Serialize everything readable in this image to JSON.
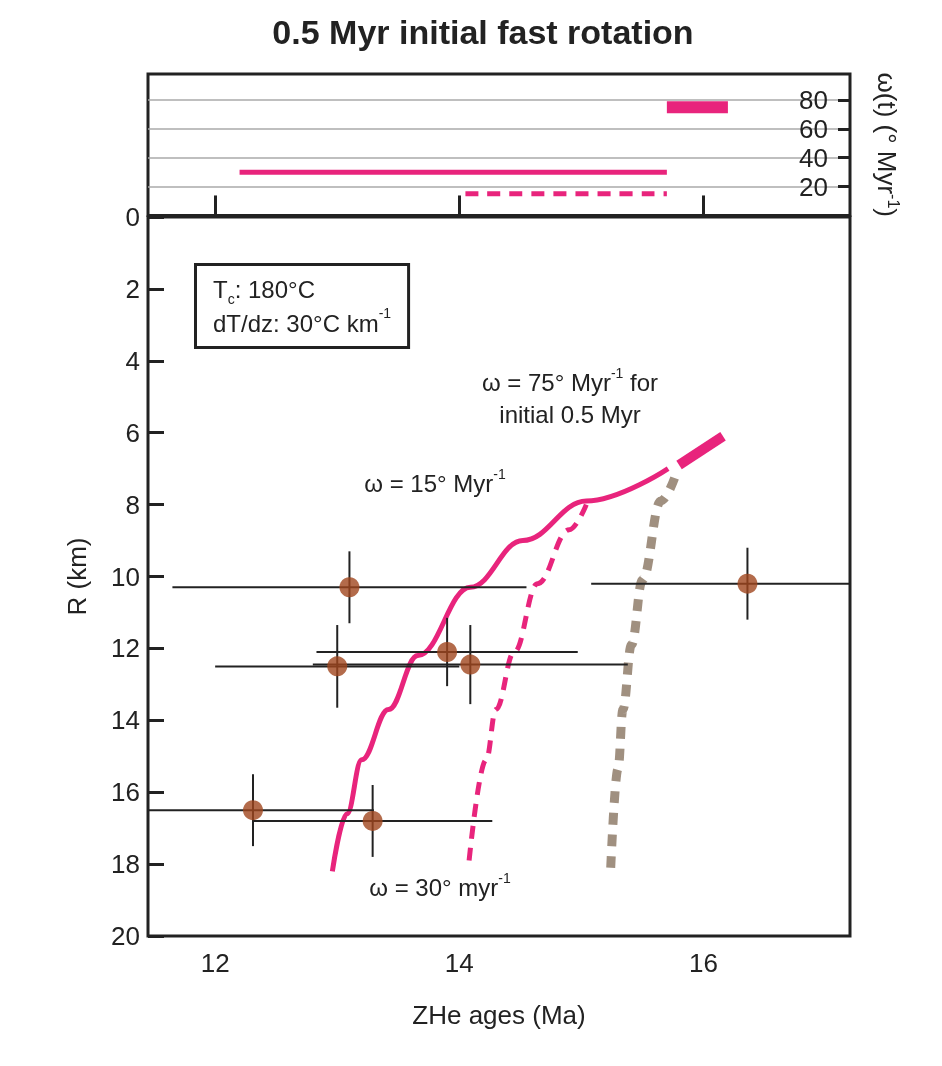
{
  "chart_data": [
    {
      "type": "line",
      "title": "0.5 Myr initial fast rotation",
      "ylabel": "ω(t) (° Myr$^{-1}$)",
      "xlim": [
        11.45,
        17.2
      ],
      "xticks": [
        {
          "value": 12,
          "label": null
        },
        {
          "value": 14,
          "label": null
        },
        {
          "value": 16,
          "label": null
        }
      ],
      "ylim": [
        0,
        98
      ],
      "yticks": [
        20,
        40,
        60,
        80
      ],
      "grid": "y",
      "tick_labels": "y",
      "marker": "none",
      "series": [
        {
          "color": "#e8247c",
          "line_style": "solid",
          "x": [
            12.2,
            15.7
          ],
          "values": [
            30,
            30
          ]
        },
        {
          "color": "#e8247c",
          "line_style": "dashed",
          "x": [
            14.05,
            15.7
          ],
          "values": [
            15,
            15
          ]
        },
        {
          "color": "#e8247c",
          "line_style": "solid",
          "x": [
            15.7,
            16.2
          ],
          "values": [
            75,
            75
          ]
        }
      ]
    },
    {
      "type": "line",
      "xlabel": "ZHe ages (Ma)",
      "ylabel": "R (km)",
      "xlim": [
        11.45,
        17.2
      ],
      "xticks": [
        12,
        14,
        16
      ],
      "ylim": [
        20,
        0
      ],
      "yticks": [
        0,
        2,
        4,
        6,
        8,
        10,
        12,
        14,
        16,
        18,
        20
      ],
      "grid": false,
      "annotations": [
        "T$_{c}$: 180°C\ndT/dz: 30°C km$^{-1}$",
        "ω = 15° Myr$^{-1}$",
        "ω = 30° myr$^{-1}$",
        "ω = 75° Myr$^{-1}$ for\ninitial 0.5 Myr"
      ],
      "series": [
        {
          "color": "#e8247c",
          "line_style": "solid",
          "marker": "none",
          "x": [
            12.96,
            13.08,
            13.2,
            13.42,
            13.66,
            14.09,
            14.52,
            15.04,
            15.71
          ],
          "values": [
            18.2,
            16.6,
            15.1,
            13.7,
            12.2,
            10.3,
            9.0,
            7.9,
            7.0
          ]
        },
        {
          "color": "#e8247c",
          "line_style": "dashed",
          "marker": "none",
          "x": [
            14.08,
            14.22,
            14.3,
            14.45,
            14.64,
            14.9,
            15.04
          ],
          "values": [
            17.9,
            15.1,
            13.7,
            12.1,
            10.2,
            8.7,
            8.0
          ]
        },
        {
          "color": "#a09080",
          "line_style": "dotted",
          "marker": "none",
          "x": [
            15.24,
            15.3,
            15.34,
            15.41,
            15.5,
            15.65,
            15.77
          ],
          "values": [
            18.1,
            15.35,
            13.7,
            11.9,
            10.1,
            7.9,
            7.2
          ]
        },
        {
          "color": "#e8247c",
          "line_style": "solid",
          "marker": "none",
          "x": [
            15.8,
            16.16
          ],
          "values": [
            6.9,
            6.1
          ]
        },
        {
          "type": "scatter",
          "color": "#a0461e",
          "marker": "circle",
          "x": [
            13.1,
            16.36,
            13.9,
            13.0,
            14.09,
            12.31,
            13.29
          ],
          "values": [
            10.3,
            10.2,
            12.1,
            12.5,
            12.45,
            16.5,
            16.8
          ],
          "errors": [
            1.0,
            1.0,
            0.95,
            1.15,
            1.1,
            1.0,
            1.0
          ],
          "xerrors": [
            1.45,
            [
              15.08,
              17.2
            ],
            1.07,
            1.0,
            1.29,
            [
              11.45,
              13.3
            ],
            0.98
          ]
        }
      ]
    }
  ]
}
